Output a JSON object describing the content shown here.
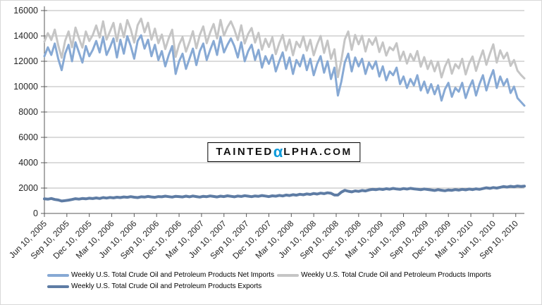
{
  "watermark": {
    "prefix": "TAINTED",
    "alpha": "α",
    "suffix": "LPHA",
    "tld": ".COM",
    "alpha_color": "#0d9bdb"
  },
  "chart_data": {
    "type": "line",
    "title": "",
    "xlabel": "",
    "ylabel": "",
    "ylim": [
      0,
      16000
    ],
    "y_ticks": [
      0,
      2000,
      4000,
      6000,
      8000,
      10000,
      12000,
      14000,
      16000
    ],
    "grid": true,
    "legend_position": "bottom",
    "points_per_tick": 6.5,
    "draw_order": [
      1,
      0,
      2
    ],
    "x_tick_labels": [
      "Jun 10, 2005",
      "Sep 10, 2005",
      "Dec 10, 2005",
      "Mar 10, 2006",
      "Jun 10, 2006",
      "Sep 10, 2006",
      "Dec 10, 2006",
      "Mar 10, 2007",
      "Jun 10, 2007",
      "Sep 10, 2007",
      "Dec 10, 2007",
      "Mar 10, 2008",
      "Jun 10, 2008",
      "Sep 10, 2008",
      "Dec 10, 2008",
      "Mar 10, 2009",
      "Jun 10, 2009",
      "Sep 10, 2009",
      "Dec 10, 2009",
      "Mar 10, 2010",
      "Jun 10, 2010",
      "Sep 10, 2010"
    ],
    "series": [
      {
        "name": "Weekly U.S. Total Crude Oil and Petroleum Products Net Imports",
        "key": "net-imports",
        "color": "#87a9d4",
        "width": 3,
        "values": [
          12400,
          13100,
          12500,
          13400,
          12200,
          11300,
          12600,
          13300,
          12000,
          13500,
          12700,
          11900,
          13200,
          12400,
          12900,
          13600,
          12700,
          13900,
          12500,
          13100,
          13800,
          12300,
          13700,
          12600,
          13980,
          13200,
          12200,
          13600,
          14050,
          13000,
          13700,
          12400,
          13300,
          12100,
          12800,
          11600,
          12500,
          13200,
          11000,
          12000,
          12600,
          11400,
          12200,
          13000,
          11700,
          12800,
          13400,
          12100,
          12900,
          13600,
          12500,
          13900,
          12700,
          13300,
          13800,
          13200,
          12300,
          13500,
          12000,
          12800,
          13300,
          12100,
          12900,
          11500,
          12400,
          11800,
          12500,
          11200,
          12000,
          12700,
          11400,
          12300,
          11000,
          12100,
          11600,
          12500,
          11300,
          12200,
          10900,
          11800,
          12400,
          11100,
          12000,
          10600,
          11500,
          9300,
          10400,
          11900,
          12600,
          11200,
          12300,
          11600,
          12200,
          11000,
          11900,
          11400,
          12000,
          10800,
          11600,
          10500,
          11200,
          10900,
          11500,
          10200,
          10800,
          9900,
          10600,
          10100,
          10900,
          9700,
          10400,
          9500,
          10200,
          9400,
          10100,
          8900,
          9800,
          10300,
          9200,
          9900,
          9600,
          10300,
          9100,
          9900,
          10500,
          9300,
          10200,
          10900,
          9700,
          10600,
          11300,
          9900,
          10800,
          10100,
          10600,
          9500,
          10000,
          9100,
          8800,
          8500
        ]
      },
      {
        "name": "Weekly U.S. Total Crude Oil and Petroleum Products Imports",
        "key": "imports",
        "color": "#c5c5c5",
        "width": 3,
        "values": [
          13550,
          14220,
          13680,
          14500,
          13260,
          12280,
          13610,
          14350,
          13100,
          14660,
          13830,
          13080,
          14350,
          13600,
          14070,
          14820,
          13880,
          15150,
          13710,
          14360,
          15030,
          13580,
          14950,
          13900,
          15250,
          14520,
          13480,
          14850,
          15360,
          14290,
          15040,
          13700,
          14570,
          13430,
          14110,
          12960,
          13820,
          14490,
          12350,
          13330,
          13900,
          12760,
          13510,
          14370,
          13030,
          14090,
          14750,
          13420,
          14280,
          14940,
          13800,
          15260,
          14030,
          14690,
          15150,
          14510,
          13670,
          14840,
          13400,
          14160,
          14620,
          13480,
          14250,
          12910,
          13770,
          13130,
          13890,
          12560,
          13420,
          14080,
          12850,
          13710,
          12480,
          13540,
          13110,
          13970,
          12840,
          13700,
          12470,
          13330,
          14000,
          12660,
          13630,
          12190,
          12950,
          10750,
          12080,
          13720,
          14350,
          12900,
          14080,
          13340,
          14010,
          12770,
          13750,
          13300,
          13870,
          12730,
          13490,
          12450,
          13110,
          12870,
          13430,
          12100,
          12760,
          11820,
          12580,
          12040,
          12810,
          11570,
          12330,
          11390,
          12050,
          11210,
          11970,
          10730,
          11590,
          12150,
          11020,
          11780,
          11440,
          12200,
          10960,
          11820,
          12380,
          11240,
          12100,
          12860,
          11720,
          12580,
          13340,
          11900,
          12860,
          12220,
          12680,
          11640,
          12100,
          11260,
          10930,
          10650
        ]
      },
      {
        "name": "Weekly U.S. Total Crude Oil and Petroleum Products Exports",
        "key": "exports",
        "color": "#5e7ca4",
        "width": 4,
        "values": [
          1150,
          1120,
          1180,
          1100,
          1060,
          980,
          1010,
          1050,
          1100,
          1160,
          1130,
          1180,
          1150,
          1200,
          1170,
          1220,
          1180,
          1250,
          1210,
          1260,
          1230,
          1280,
          1250,
          1300,
          1270,
          1320,
          1280,
          1250,
          1310,
          1290,
          1340,
          1300,
          1270,
          1330,
          1310,
          1360,
          1320,
          1290,
          1350,
          1330,
          1300,
          1360,
          1310,
          1370,
          1330,
          1290,
          1350,
          1320,
          1380,
          1340,
          1300,
          1360,
          1330,
          1390,
          1350,
          1310,
          1370,
          1340,
          1400,
          1360,
          1320,
          1380,
          1350,
          1410,
          1370,
          1330,
          1390,
          1360,
          1420,
          1380,
          1450,
          1410,
          1480,
          1440,
          1510,
          1470,
          1540,
          1500,
          1570,
          1530,
          1600,
          1560,
          1630,
          1590,
          1450,
          1450,
          1680,
          1820,
          1750,
          1700,
          1780,
          1740,
          1810,
          1770,
          1850,
          1900,
          1870,
          1930,
          1890,
          1950,
          1910,
          1970,
          1930,
          1900,
          1960,
          1920,
          1980,
          1940,
          1910,
          1870,
          1930,
          1890,
          1850,
          1810,
          1870,
          1830,
          1790,
          1850,
          1820,
          1880,
          1840,
          1900,
          1860,
          1920,
          1880,
          1940,
          1900,
          1960,
          2020,
          1980,
          2040,
          2000,
          2060,
          2120,
          2080,
          2140,
          2100,
          2160,
          2130,
          2150
        ]
      }
    ]
  }
}
